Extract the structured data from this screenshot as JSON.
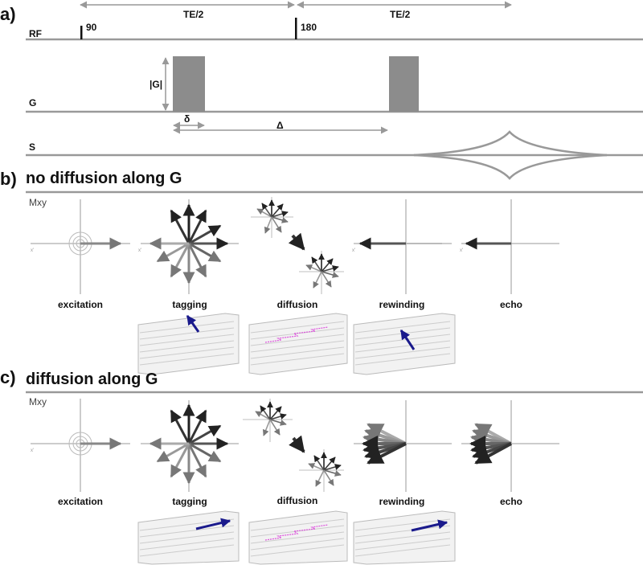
{
  "panel_a": {
    "label": "a)",
    "tracks": {
      "rf": "RF",
      "g": "G",
      "s": "S"
    },
    "rf_pulse_90": "90",
    "rf_pulse_180": "180",
    "te_half_1": "TE/2",
    "te_half_2": "TE/2",
    "gradient_amplitude": "|G|",
    "delta_small": "δ",
    "delta_large": "Δ"
  },
  "panel_b": {
    "label": "b)",
    "title": "no diffusion along G",
    "mxy_label": "Mxy",
    "steps": [
      "excitation",
      "tagging",
      "diffusion",
      "rewinding",
      "echo"
    ]
  },
  "panel_c": {
    "label": "c)",
    "title": "diffusion along G",
    "mxy_label": "Mxy",
    "steps": [
      "excitation",
      "tagging",
      "diffusion",
      "rewinding",
      "echo"
    ]
  },
  "axis_labels": {
    "x": "x'",
    "y": "y'"
  },
  "colors": {
    "line": "#999999",
    "gradient": "#8c8c8c",
    "arrow_dark": "#1a1a1a",
    "motion_arrow": "#1a1a8c",
    "diffusion_path": "#dd55dd"
  }
}
